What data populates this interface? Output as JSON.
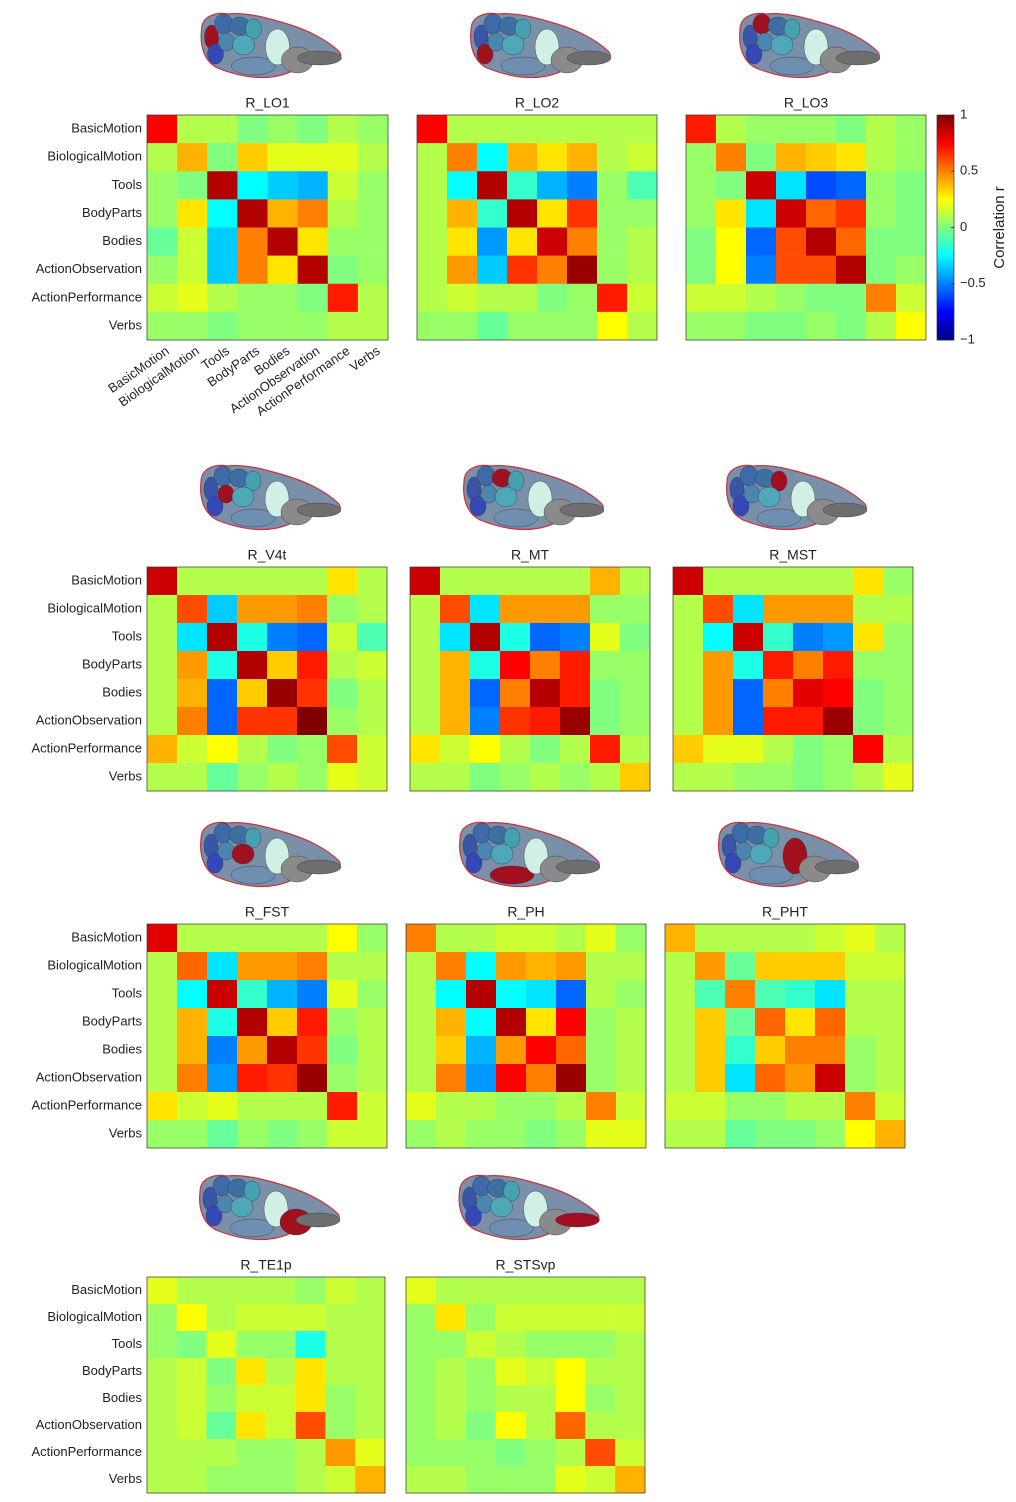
{
  "categories": [
    "BasicMotion",
    "BiologicalMotion",
    "Tools",
    "BodyParts",
    "Bodies",
    "ActionObservation",
    "ActionPerformance",
    "Verbs"
  ],
  "colorbar": {
    "label": "Correlation r",
    "zlim": [
      -1,
      1
    ],
    "zticks": [
      {
        "value": -1,
        "label": "−1"
      },
      {
        "value": -0.5,
        "label": "−0.5"
      },
      0,
      0.5,
      1
    ],
    "colormap": "jet"
  },
  "chart_data": [
    {
      "type": "heatmap",
      "title": "R_LO1",
      "values": [
        [
          0.75,
          0.1,
          0.1,
          0,
          0.05,
          0,
          0.1,
          0.05
        ],
        [
          0.1,
          0.4,
          0,
          0.35,
          0.2,
          0.2,
          0.2,
          0.1
        ],
        [
          0.05,
          0,
          0.9,
          -0.25,
          -0.35,
          -0.4,
          0.15,
          0.05
        ],
        [
          0.05,
          0.3,
          -0.25,
          0.9,
          0.4,
          0.5,
          0.1,
          0.05
        ],
        [
          -0.05,
          0.15,
          -0.35,
          0.5,
          0.9,
          0.3,
          0.05,
          0.05
        ],
        [
          0.05,
          0.15,
          -0.35,
          0.5,
          0.3,
          0.9,
          0,
          0.05
        ],
        [
          0.15,
          0.2,
          0.1,
          0.05,
          0.05,
          0,
          0.7,
          0.1
        ],
        [
          0.05,
          0.05,
          0,
          0.05,
          0.05,
          0.05,
          0.1,
          0.1
        ]
      ]
    },
    {
      "type": "heatmap",
      "title": "R_LO2",
      "values": [
        [
          0.75,
          0.1,
          0.1,
          0.1,
          0.1,
          0.1,
          0.1,
          0.1
        ],
        [
          0.1,
          0.5,
          -0.25,
          0.4,
          0.3,
          0.4,
          0.1,
          0.15
        ],
        [
          0.1,
          -0.25,
          0.9,
          -0.15,
          -0.4,
          -0.5,
          0.05,
          -0.1
        ],
        [
          0.1,
          0.4,
          -0.15,
          0.9,
          0.3,
          0.65,
          0.05,
          0.05
        ],
        [
          0.1,
          0.3,
          -0.45,
          0.3,
          0.85,
          0.5,
          0.05,
          0.1
        ],
        [
          0.1,
          0.45,
          -0.35,
          0.65,
          0.5,
          0.95,
          0.05,
          0.1
        ],
        [
          0.1,
          0.15,
          0.1,
          0.1,
          0,
          0.05,
          0.7,
          0.15
        ],
        [
          0.05,
          0.05,
          -0.05,
          0.05,
          0.05,
          0.05,
          0.25,
          0.1
        ]
      ]
    },
    {
      "type": "heatmap",
      "title": "R_LO3",
      "values": [
        [
          0.7,
          0.1,
          0.05,
          0.05,
          0.05,
          0,
          0.1,
          0.05
        ],
        [
          0.05,
          0.5,
          0,
          0.4,
          0.35,
          0.3,
          0.1,
          0.05
        ],
        [
          0.05,
          0,
          0.85,
          -0.3,
          -0.6,
          -0.55,
          0.05,
          0
        ],
        [
          0.05,
          0.3,
          -0.3,
          0.85,
          0.55,
          0.65,
          0.05,
          0
        ],
        [
          0,
          0.25,
          -0.55,
          0.6,
          0.9,
          0.55,
          0,
          0
        ],
        [
          0,
          0.25,
          -0.5,
          0.6,
          0.6,
          0.9,
          0,
          0.05
        ],
        [
          0.15,
          0.15,
          0.1,
          0.05,
          0,
          0,
          0.5,
          0.15
        ],
        [
          0.05,
          0.05,
          0,
          0,
          0.05,
          0,
          0.1,
          0.25
        ]
      ]
    },
    {
      "type": "heatmap",
      "title": "R_V4t",
      "values": [
        [
          0.85,
          0.1,
          0.1,
          0.1,
          0.1,
          0.1,
          0.3,
          0.1
        ],
        [
          0.1,
          0.6,
          -0.35,
          0.45,
          0.45,
          0.5,
          0.05,
          0.1
        ],
        [
          0.1,
          -0.3,
          0.9,
          -0.2,
          -0.5,
          -0.55,
          0.15,
          -0.1
        ],
        [
          0.1,
          0.45,
          -0.2,
          0.9,
          0.35,
          0.7,
          0.1,
          0.15
        ],
        [
          0.1,
          0.4,
          -0.55,
          0.35,
          0.95,
          0.65,
          0,
          0.1
        ],
        [
          0.1,
          0.5,
          -0.55,
          0.65,
          0.65,
          1,
          0.05,
          0.1
        ],
        [
          0.4,
          0.15,
          0.25,
          0.1,
          0,
          0.05,
          0.6,
          0.15
        ],
        [
          0.1,
          0.1,
          -0.05,
          0.05,
          0.1,
          0.05,
          0.2,
          0.15
        ]
      ]
    },
    {
      "type": "heatmap",
      "title": "R_MT",
      "values": [
        [
          0.85,
          0.1,
          0.1,
          0.1,
          0.1,
          0.1,
          0.4,
          0.1
        ],
        [
          0.1,
          0.6,
          -0.3,
          0.45,
          0.45,
          0.45,
          0.05,
          0.05
        ],
        [
          0.1,
          -0.3,
          0.9,
          -0.2,
          -0.55,
          -0.5,
          0.2,
          0
        ],
        [
          0.1,
          0.4,
          -0.2,
          0.75,
          0.5,
          0.7,
          0.05,
          0.05
        ],
        [
          0.1,
          0.4,
          -0.55,
          0.5,
          0.9,
          0.7,
          0,
          0.05
        ],
        [
          0.1,
          0.4,
          -0.5,
          0.65,
          0.7,
          0.95,
          0,
          0.05
        ],
        [
          0.3,
          0.15,
          0.25,
          0.1,
          0,
          0.1,
          0.7,
          0.1
        ],
        [
          0.1,
          0.1,
          0,
          0.05,
          0.1,
          0.05,
          0.1,
          0.35
        ]
      ]
    },
    {
      "type": "heatmap",
      "title": "R_MST",
      "values": [
        [
          0.85,
          0.1,
          0.1,
          0.1,
          0.1,
          0.1,
          0.3,
          0.05
        ],
        [
          0.1,
          0.6,
          -0.3,
          0.45,
          0.45,
          0.45,
          0.1,
          0.1
        ],
        [
          0.1,
          -0.25,
          0.85,
          -0.15,
          -0.5,
          -0.45,
          0.3,
          0.05
        ],
        [
          0.1,
          0.45,
          -0.2,
          0.7,
          0.5,
          0.7,
          0.05,
          0.05
        ],
        [
          0.1,
          0.45,
          -0.55,
          0.5,
          0.8,
          0.75,
          0,
          0.05
        ],
        [
          0.1,
          0.45,
          -0.55,
          0.7,
          0.7,
          0.95,
          0,
          0.05
        ],
        [
          0.35,
          0.2,
          0.2,
          0.1,
          0,
          0.05,
          0.75,
          0.1
        ],
        [
          0.1,
          0.1,
          0.05,
          0.05,
          0,
          0.05,
          0.1,
          0.2
        ]
      ]
    },
    {
      "type": "heatmap",
      "title": "R_FST",
      "values": [
        [
          0.8,
          0.1,
          0.1,
          0.1,
          0.1,
          0.1,
          0.25,
          0.05
        ],
        [
          0.1,
          0.55,
          -0.3,
          0.45,
          0.45,
          0.5,
          0.1,
          0.1
        ],
        [
          0.1,
          -0.25,
          0.85,
          -0.15,
          -0.4,
          -0.5,
          0.2,
          0.05
        ],
        [
          0.1,
          0.4,
          -0.2,
          0.9,
          0.35,
          0.7,
          0.05,
          0.1
        ],
        [
          0.1,
          0.4,
          -0.5,
          0.45,
          0.9,
          0.65,
          0,
          0.1
        ],
        [
          0.1,
          0.5,
          -0.45,
          0.7,
          0.65,
          0.95,
          0.05,
          0.1
        ],
        [
          0.3,
          0.15,
          0.2,
          0.1,
          0.1,
          0.1,
          0.7,
          0.15
        ],
        [
          0.05,
          0.05,
          -0.05,
          0.05,
          0,
          0.05,
          0.15,
          0.15
        ]
      ]
    },
    {
      "type": "heatmap",
      "title": "R_PH",
      "values": [
        [
          0.5,
          0.1,
          0.1,
          0.15,
          0.15,
          0.1,
          0.2,
          0.05
        ],
        [
          0.1,
          0.5,
          -0.25,
          0.45,
          0.4,
          0.45,
          0.1,
          0.1
        ],
        [
          0.1,
          -0.25,
          0.9,
          -0.25,
          -0.3,
          -0.55,
          0.1,
          0.05
        ],
        [
          0.1,
          0.4,
          -0.25,
          0.9,
          0.3,
          0.75,
          0.05,
          0.1
        ],
        [
          0.1,
          0.35,
          -0.4,
          0.45,
          0.75,
          0.55,
          0.05,
          0.1
        ],
        [
          0.1,
          0.5,
          -0.45,
          0.75,
          0.5,
          0.95,
          0.05,
          0.1
        ],
        [
          0.2,
          0.1,
          0.1,
          0.05,
          0.05,
          0.1,
          0.5,
          0.15
        ],
        [
          0.05,
          0.1,
          0.05,
          0.05,
          0,
          0.05,
          0.2,
          0.2
        ]
      ]
    },
    {
      "type": "heatmap",
      "title": "R_PHT",
      "values": [
        [
          0.4,
          0.1,
          0.1,
          0.1,
          0.1,
          0.15,
          0.2,
          0.1
        ],
        [
          0.1,
          0.45,
          -0.05,
          0.35,
          0.35,
          0.35,
          0.15,
          0.15
        ],
        [
          0.1,
          -0.1,
          0.5,
          -0.1,
          -0.15,
          -0.3,
          0.1,
          0.1
        ],
        [
          0.1,
          0.35,
          -0.05,
          0.55,
          0.3,
          0.55,
          0.1,
          0.1
        ],
        [
          0.1,
          0.35,
          -0.15,
          0.35,
          0.5,
          0.5,
          0.05,
          0.1
        ],
        [
          0.1,
          0.35,
          -0.3,
          0.55,
          0.45,
          0.85,
          0.05,
          0.1
        ],
        [
          0.15,
          0.15,
          0.05,
          0.05,
          0.1,
          0.1,
          0.5,
          0.15
        ],
        [
          0.1,
          0.1,
          -0.05,
          0,
          0,
          0.05,
          0.25,
          0.4
        ]
      ]
    },
    {
      "type": "heatmap",
      "title": "R_TE1p",
      "values": [
        [
          0.2,
          0.1,
          0.1,
          0.1,
          0.1,
          0.05,
          0.15,
          0.1
        ],
        [
          0.05,
          0.25,
          0.1,
          0.15,
          0.15,
          0.15,
          0.1,
          0.1
        ],
        [
          0.05,
          0,
          0.2,
          0.05,
          0.05,
          -0.2,
          0.1,
          0.1
        ],
        [
          0.1,
          0.15,
          0,
          0.3,
          0.1,
          0.3,
          0.1,
          0.1
        ],
        [
          0.1,
          0.15,
          0.05,
          0.15,
          0.15,
          0.3,
          0.05,
          0.1
        ],
        [
          0.1,
          0.15,
          -0.05,
          0.3,
          0.15,
          0.6,
          0.05,
          0.1
        ],
        [
          0.1,
          0.1,
          0.1,
          0.05,
          0.05,
          0.1,
          0.45,
          0.2
        ],
        [
          0.1,
          0.1,
          0.05,
          0.05,
          0.05,
          0.1,
          0.15,
          0.4
        ]
      ]
    },
    {
      "type": "heatmap",
      "title": "R_STSvp",
      "values": [
        [
          0.2,
          0.1,
          0.1,
          0.1,
          0.1,
          0.1,
          0.1,
          0.1
        ],
        [
          0.05,
          0.3,
          0.05,
          0.15,
          0.15,
          0.15,
          0.15,
          0.15
        ],
        [
          0.05,
          0.05,
          0.15,
          0.1,
          0.05,
          0.05,
          0.05,
          0.1
        ],
        [
          0.05,
          0.1,
          0.05,
          0.2,
          0.15,
          0.25,
          0.1,
          0.1
        ],
        [
          0.05,
          0.1,
          0.05,
          0.1,
          0.1,
          0.25,
          0.05,
          0.1
        ],
        [
          0.05,
          0.1,
          0,
          0.25,
          0.1,
          0.55,
          0.1,
          0.1
        ],
        [
          0.05,
          0.05,
          0.05,
          0,
          0.05,
          0.1,
          0.6,
          0.15
        ],
        [
          0.1,
          0.1,
          0.05,
          0.05,
          0.05,
          0.2,
          0.15,
          0.4
        ]
      ]
    }
  ]
}
